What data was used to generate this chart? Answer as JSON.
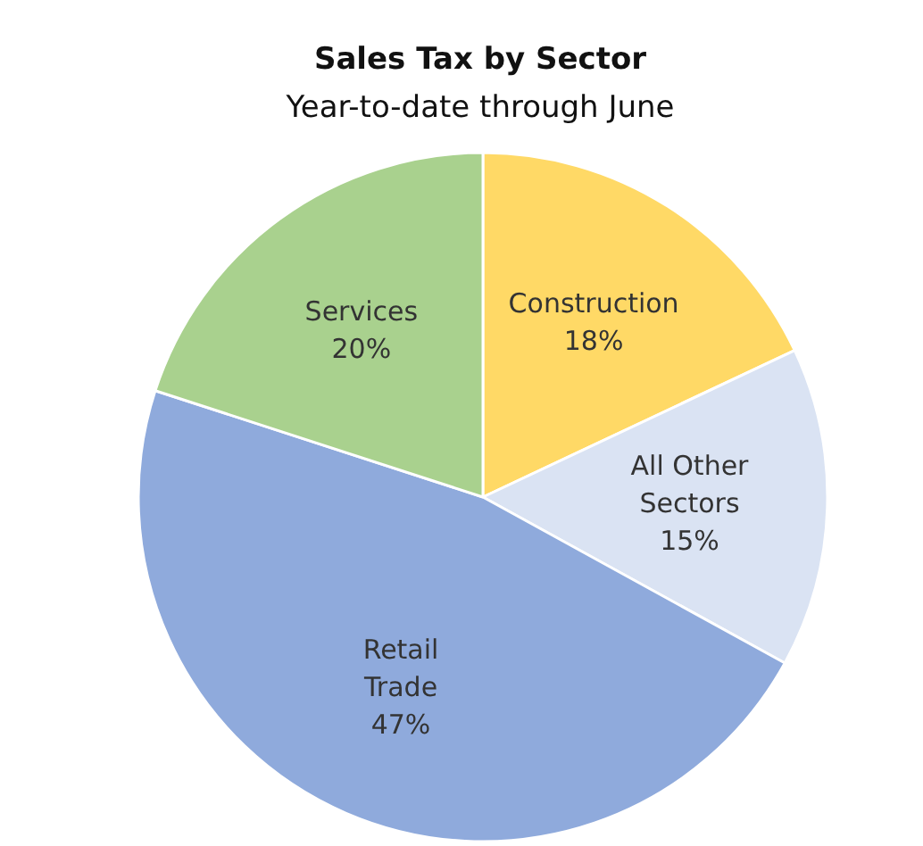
{
  "chart_data": {
    "type": "pie",
    "title": "Sales Tax by Sector",
    "subtitle": "Year-to-date through June",
    "categories": [
      "Construction",
      "All Other Sectors",
      "Retail Trade",
      "Services"
    ],
    "values": [
      18,
      15,
      47,
      20
    ],
    "value_labels": [
      "18%",
      "15%",
      "47%",
      "20%"
    ],
    "colors": [
      "#ffd966",
      "#dae3f3",
      "#8faadc",
      "#a9d18e"
    ]
  }
}
